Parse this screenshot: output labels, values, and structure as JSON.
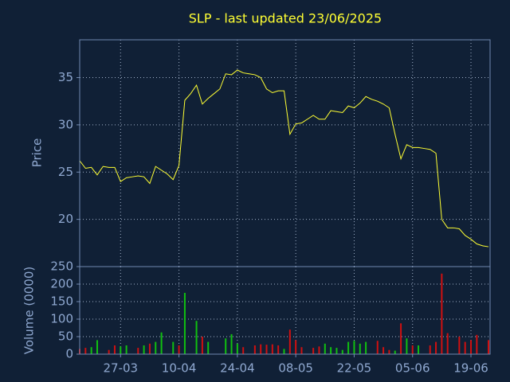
{
  "chart_data": [
    {
      "type": "line",
      "title": "SLP - last updated 23/06/2025",
      "ylabel": "Price",
      "categories": [
        null,
        null,
        null,
        null,
        null,
        null,
        null,
        "27-03",
        null,
        null,
        null,
        null,
        null,
        null,
        null,
        null,
        null,
        "10-04",
        null,
        null,
        null,
        null,
        null,
        null,
        null,
        null,
        null,
        "24-04",
        null,
        null,
        null,
        null,
        null,
        null,
        null,
        null,
        null,
        "08-05",
        null,
        null,
        null,
        null,
        null,
        null,
        null,
        null,
        null,
        "22-05",
        null,
        null,
        null,
        null,
        null,
        null,
        null,
        null,
        null,
        "05-06",
        null,
        null,
        null,
        null,
        null,
        null,
        null,
        null,
        null,
        "19-06",
        null,
        null,
        null
      ],
      "series": [
        {
          "name": "Price",
          "color": "#ffff33",
          "values": [
            26.2,
            25.4,
            25.5,
            24.7,
            25.6,
            25.5,
            25.5,
            24.0,
            24.4,
            24.5,
            24.6,
            24.5,
            23.8,
            25.6,
            25.2,
            24.8,
            24.2,
            25.7,
            32.6,
            33.3,
            34.2,
            32.2,
            32.8,
            33.3,
            33.8,
            35.4,
            35.3,
            35.8,
            35.5,
            35.4,
            35.3,
            35.0,
            33.8,
            33.4,
            33.6,
            33.6,
            29.0,
            30.1,
            30.2,
            30.6,
            31.0,
            30.6,
            30.6,
            31.5,
            31.4,
            31.3,
            32.0,
            31.8,
            32.3,
            33.0,
            32.7,
            32.5,
            32.2,
            31.8,
            29.0,
            26.4,
            27.9,
            27.6,
            27.6,
            27.5,
            27.4,
            27.0,
            20.0,
            19.1,
            19.1,
            19.0,
            18.3,
            17.9,
            17.4,
            17.2,
            17.1
          ]
        }
      ],
      "ylim": [
        15,
        39
      ],
      "yticks": [
        20,
        25,
        30,
        35
      ],
      "grid": true
    },
    {
      "type": "bar",
      "ylabel": "Volume (0000)",
      "values": [
        15,
        18,
        20,
        40,
        0,
        12,
        25,
        22,
        25,
        0,
        18,
        25,
        30,
        35,
        62,
        0,
        35,
        25,
        175,
        0,
        95,
        50,
        35,
        0,
        0,
        45,
        57,
        30,
        20,
        0,
        25,
        28,
        27,
        28,
        25,
        15,
        70,
        40,
        20,
        0,
        18,
        22,
        30,
        20,
        18,
        12,
        35,
        38,
        30,
        35,
        0,
        38,
        20,
        12,
        10,
        88,
        45,
        25,
        25,
        0,
        25,
        35,
        230,
        60,
        0,
        50,
        35,
        40,
        55,
        0,
        40
      ],
      "colors": [
        "#d01010",
        "#d01010",
        "#10c010",
        "#10c010",
        "#10c010",
        "#d01010",
        "#d01010",
        "#10c010",
        "#10c010",
        "#10c010",
        "#d01010",
        "#10c010",
        "#d01010",
        "#10c010",
        "#10c010",
        "#10c010",
        "#10c010",
        "#d01010",
        "#10c010",
        "#10c010",
        "#10c010",
        "#d01010",
        "#10c010",
        "#10c010",
        "#10c010",
        "#10c010",
        "#10c010",
        "#10c010",
        "#d01010",
        "#d01010",
        "#d01010",
        "#d01010",
        "#d01010",
        "#d01010",
        "#d01010",
        "#10c010",
        "#d01010",
        "#d01010",
        "#d01010",
        "#d01010",
        "#d01010",
        "#d01010",
        "#10c010",
        "#10c010",
        "#10c010",
        "#10c010",
        "#10c010",
        "#10c010",
        "#10c010",
        "#10c010",
        "#10c010",
        "#d01010",
        "#d01010",
        "#d01010",
        "#10c010",
        "#d01010",
        "#10c010",
        "#d01010",
        "#10c010",
        "#d01010",
        "#d01010",
        "#d01010",
        "#d01010",
        "#d01010",
        "#d01010",
        "#d01010",
        "#d01010",
        "#d01010",
        "#d01010",
        "#d01010",
        "#d01010"
      ],
      "ylim": [
        0,
        250
      ],
      "yticks": [
        0,
        50,
        100,
        150,
        200,
        250
      ],
      "grid": true
    }
  ]
}
